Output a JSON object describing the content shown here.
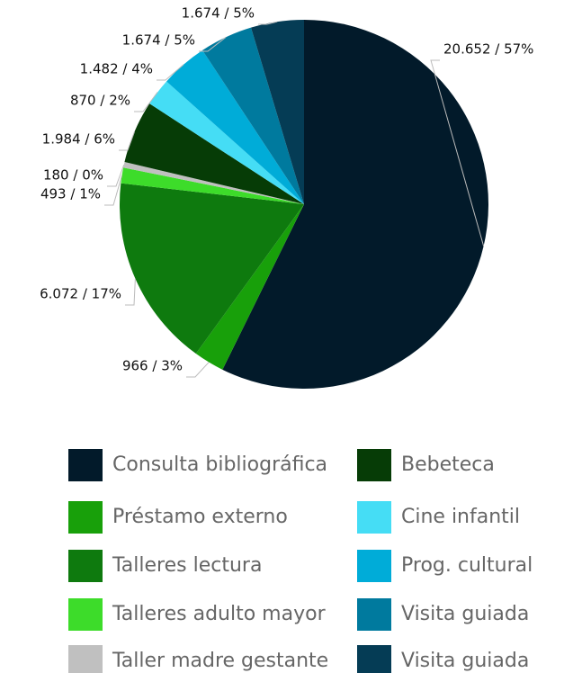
{
  "chart_data": {
    "type": "pie",
    "categories": [
      "Consulta bibliográfica",
      "Préstamo externo",
      "Talleres lectura",
      "Talleres adulto mayor",
      "Taller madre gestante",
      "Bebeteca",
      "Cine infantil",
      "Prog. cultural",
      "Visita guiada",
      "Visita guiada"
    ],
    "values": [
      20652,
      966,
      6072,
      493,
      180,
      1984,
      870,
      1482,
      1674,
      1674
    ],
    "value_labels": [
      "20.652 / 57%",
      "966 / 3%",
      "6.072 / 17%",
      "493 / 1%",
      "180 / 0%",
      "1.984 / 6%",
      "870 / 2%",
      "1.482 / 4%",
      "1.674 / 5%",
      "1.674 / 5%"
    ],
    "colors": [
      "#021a2a",
      "#18a00a",
      "#0e7a0e",
      "#3ddc2a",
      "#c0c0c0",
      "#063c06",
      "#45ddf5",
      "#00acd8",
      "#007a9e",
      "#053c55"
    ],
    "legend": "bottom"
  }
}
